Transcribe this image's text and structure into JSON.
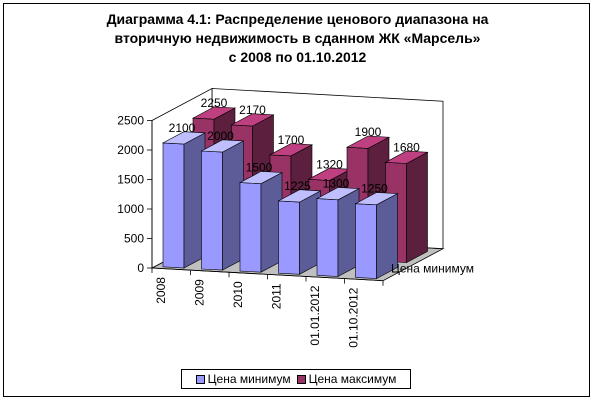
{
  "chart_data": {
    "type": "bar",
    "title": "Диаграмма 4.1: Распределение ценового диапазона на\nвторичную недвижимость в сданном ЖК «Марсель»\nс 2008 по 01.10.2012",
    "categories": [
      "2008",
      "2009",
      "2010",
      "2011",
      "01.01.2012",
      "01.10.2012"
    ],
    "series": [
      {
        "name": "Цена минимум",
        "values": [
          2100,
          2000,
          1500,
          1225,
          1300,
          1250
        ],
        "color": "#9999ff"
      },
      {
        "name": "Цена максимум",
        "values": [
          2250,
          2170,
          1700,
          1320,
          1900,
          1680
        ],
        "color": "#993366"
      }
    ],
    "yticks": [
      "0",
      "500",
      "1000",
      "1500",
      "2000",
      "2500"
    ],
    "ylim": [
      0,
      2500
    ],
    "depth_axis_label": "Цена минимум",
    "legend_position": "bottom",
    "grid": false
  }
}
